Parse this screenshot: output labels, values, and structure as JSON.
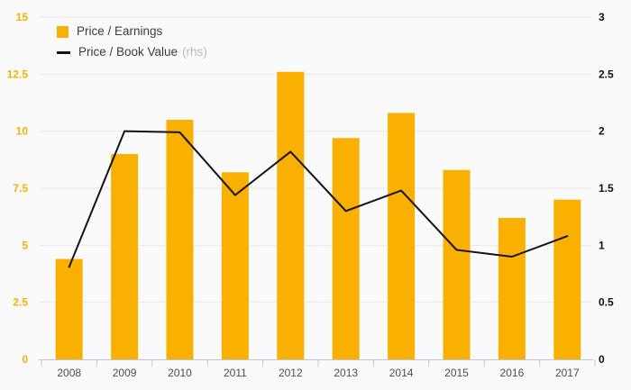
{
  "chart_data": {
    "type": "bar",
    "subtype": "bar-and-line-dual-axis",
    "categories": [
      "2008",
      "2009",
      "2010",
      "2011",
      "2012",
      "2013",
      "2014",
      "2015",
      "2016",
      "2017"
    ],
    "series": [
      {
        "name": "Price / Earnings",
        "type": "bar",
        "axis": "left",
        "color": "#f9b000",
        "values": [
          4.4,
          9.0,
          10.5,
          8.2,
          12.6,
          9.7,
          10.8,
          8.3,
          6.2,
          7.0
        ]
      },
      {
        "name": "Price / Book Value",
        "annotation": "(rhs)",
        "type": "line",
        "axis": "right",
        "color": "#141414",
        "values": [
          0.81,
          2.0,
          1.99,
          1.44,
          1.82,
          1.3,
          1.48,
          0.96,
          0.9,
          1.08
        ]
      }
    ],
    "left_axis": {
      "min": 0,
      "max": 15,
      "tick_labels": [
        "0",
        "2.5",
        "5",
        "7.5",
        "10",
        "12.5",
        "15"
      ],
      "label_color": "#f9b000"
    },
    "right_axis": {
      "min": 0,
      "max": 3,
      "tick_labels": [
        "0",
        "0.5",
        "1",
        "1.5",
        "2",
        "2.5",
        "3"
      ],
      "label_color": "#111111"
    },
    "x_axis": {
      "label_color": "#4d4d4d",
      "line_color": "#bac5e0"
    },
    "grid": {
      "show": true,
      "color": "#e8e8e8"
    },
    "legend": {
      "position": "top-left"
    },
    "background": "#fafafa",
    "title": "",
    "xlabel": "",
    "ylabel_left": "",
    "ylabel_right": ""
  }
}
